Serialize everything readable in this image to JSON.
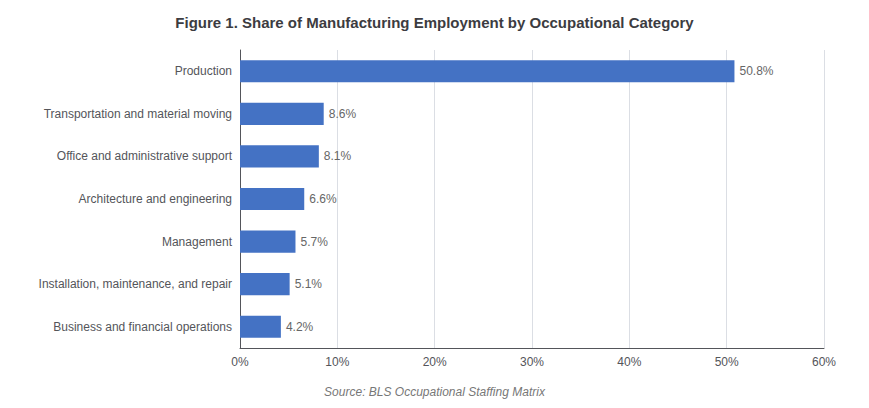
{
  "chart_data": {
    "type": "bar",
    "orientation": "horizontal",
    "title": "Figure 1. Share of Manufacturing Employment by Occupational Category",
    "categories": [
      "Business and financial operations",
      "Installation, maintenance, and repair",
      "Management",
      "Architecture and engineering",
      "Office and administrative support",
      "Transportation and material moving",
      "Production"
    ],
    "values": [
      4.2,
      5.1,
      5.7,
      6.6,
      8.1,
      8.6,
      50.8
    ],
    "value_labels": [
      "4.2%",
      "5.1%",
      "5.7%",
      "6.6%",
      "8.1%",
      "8.6%",
      "50.8%"
    ],
    "data_labels": true,
    "color": "#4472C4",
    "xlim": [
      0,
      60
    ],
    "xticks": [
      {
        "value": 0,
        "label": "0%"
      },
      {
        "value": 10,
        "label": "10%"
      },
      {
        "value": 20,
        "label": "20%"
      },
      {
        "value": 30,
        "label": "30%"
      },
      {
        "value": 40,
        "label": "40%"
      },
      {
        "value": 50,
        "label": "50%"
      },
      {
        "value": 60,
        "label": "60%"
      }
    ],
    "grid": true,
    "annotations": [
      "Source: BLS Occupational Staffing Matrix"
    ]
  }
}
